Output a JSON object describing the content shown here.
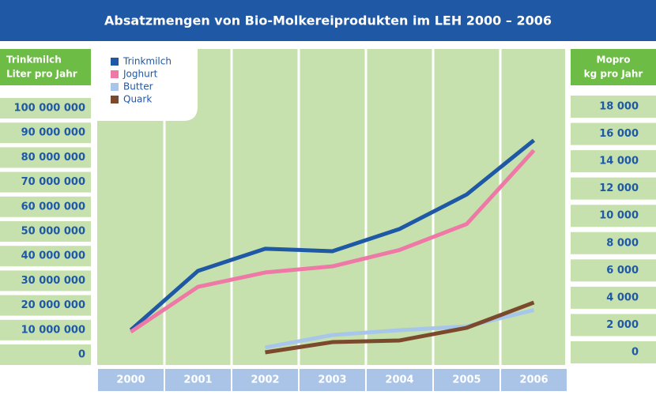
{
  "chart_data": {
    "type": "line",
    "title": "Absatzmengen von Bio-Molkereiprodukten im LEH 2000 – 2006",
    "ylabel": [
      "Trinkmilch",
      "Liter pro Jahr"
    ],
    "y2label": [
      "Mopro",
      "kg pro Jahr"
    ],
    "categories": [
      "2000",
      "2001",
      "2002",
      "2003",
      "2004",
      "2005",
      "2006"
    ],
    "series": [
      {
        "name": "Trinkmilch",
        "color": "#1f58a5",
        "values": [
          10000000,
          34000000,
          43000000,
          42000000,
          51000000,
          65000000,
          87000000
        ]
      },
      {
        "name": "Joghurt",
        "color": "#ee78a6",
        "axis": "y2",
        "values": [
          1500,
          4800,
          5850,
          6300,
          7500,
          9400,
          14800
        ]
      },
      {
        "name": "Butter",
        "color": "#a8c6ea",
        "axis": "y2",
        "values": [
          null,
          null,
          350,
          1270,
          1620,
          1900,
          3100
        ]
      },
      {
        "name": "Quark",
        "color": "#7b4a2c",
        "axis": "y2",
        "values": [
          null,
          null,
          0,
          750,
          870,
          1800,
          3650
        ]
      }
    ],
    "ylim": [
      0,
      100000000
    ],
    "yticks": [
      0,
      {
        "value": 10000000,
        "label": "10 000 000"
      },
      {
        "value": 20000000,
        "label": "20 000 000"
      },
      {
        "value": 30000000,
        "label": "30 000 000"
      },
      {
        "value": 40000000,
        "label": "40 000 000"
      },
      {
        "value": 50000000,
        "label": "50 000 000"
      },
      {
        "value": 60000000,
        "label": "60 000 000"
      },
      {
        "value": 70000000,
        "label": "70 000 000"
      },
      {
        "value": 80000000,
        "label": "80 000 000"
      },
      {
        "value": 90000000,
        "label": "90 000 000"
      },
      {
        "value": 100000000,
        "label": "100 000 000"
      }
    ],
    "y2lim": [
      0,
      18000
    ],
    "y2ticks": [
      0,
      {
        "value": 2000,
        "label": "2 000"
      },
      {
        "value": 4000,
        "label": "4 000"
      },
      {
        "value": 6000,
        "label": "6 000"
      },
      {
        "value": 8000,
        "label": "8 000"
      },
      {
        "value": 10000,
        "label": "10 000"
      },
      {
        "value": 12000,
        "label": "12 000"
      },
      {
        "value": 14000,
        "label": "14 000"
      },
      {
        "value": 16000,
        "label": "16 000"
      },
      {
        "value": 18000,
        "label": "18 000"
      }
    ]
  }
}
